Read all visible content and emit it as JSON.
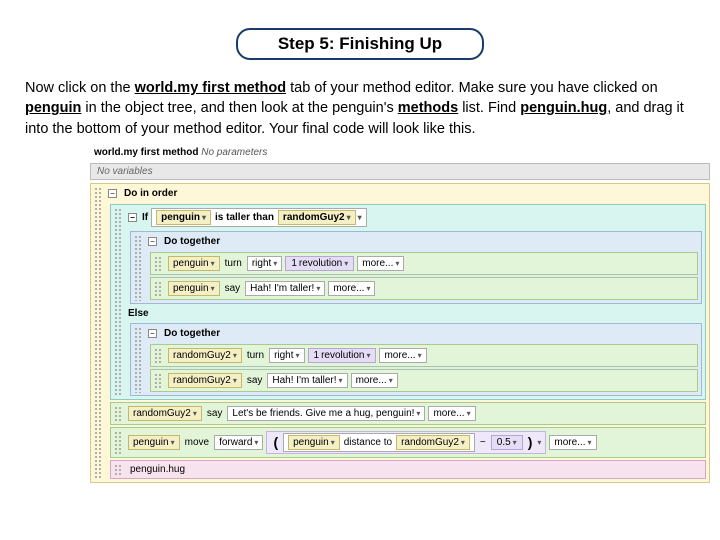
{
  "header": {
    "title": "Step 5: Finishing Up"
  },
  "instructions": {
    "p1a": "Now click on the ",
    "kw1": "world.my first method",
    "p1b": " tab of your method editor. Make sure you have clicked on ",
    "kw2": "penguin",
    "p1c": " in the object tree, and then look at the penguin's ",
    "kw3": "methods",
    "p1d": " list. Find ",
    "kw4": "penguin.hug",
    "p1e": ", and drag it into the bottom of your method editor. Your final code will look like this."
  },
  "editor": {
    "methodName": "world.my first method",
    "noParams": "No parameters",
    "noVars": "No variables",
    "collapse": "−",
    "doInOrderLabel": "Do in order",
    "ifLabel": "If",
    "elseLabel": "Else",
    "doTogetherLabel": "Do together",
    "penguin": "penguin",
    "randomGuy": "randomGuy2",
    "isTallerThan": "is taller than",
    "turn": "turn",
    "right": "right",
    "one": "1",
    "revolution": "revolution",
    "say": "say",
    "hah": "Hah! I'm taller!",
    "friends": "Let's be friends. Give me a hug, penguin!",
    "move": "move",
    "forward": "forward",
    "distanceTo": "distance to",
    "halfExpr": "0.5",
    "minus": "−",
    "hug": "penguin.hug",
    "more": "more...",
    "dd": "▾"
  },
  "colors": {
    "headerBorder": "#1a3a6e",
    "yellow": "#fff8d8",
    "green": "#e3f5d8",
    "teal": "#d8f5f0",
    "blue": "#dfeaf7",
    "pink": "#f7e3ee"
  }
}
